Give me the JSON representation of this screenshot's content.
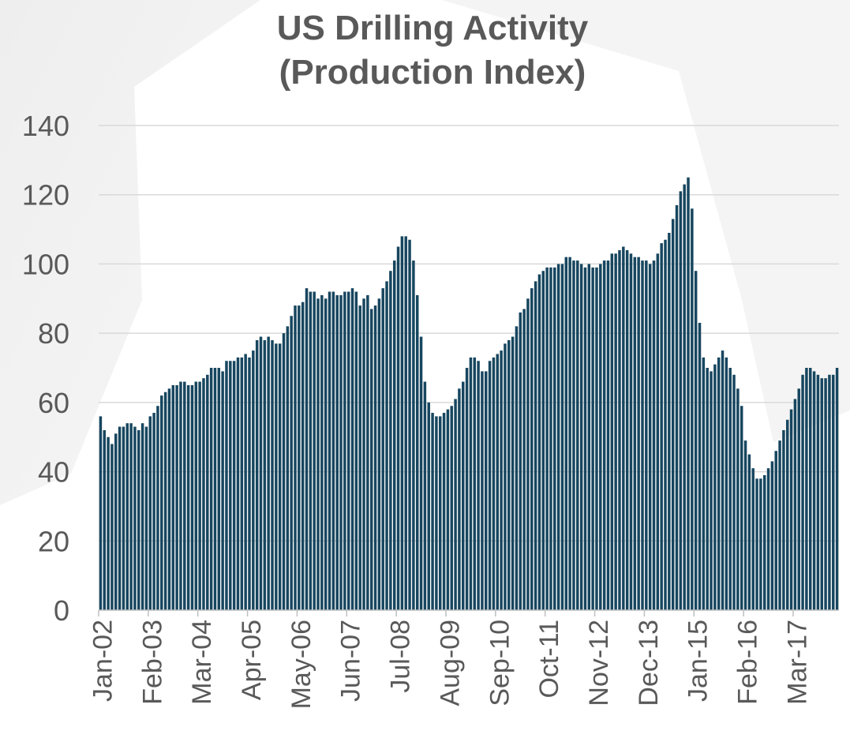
{
  "chart_data": {
    "type": "bar",
    "title": "US Drilling Activity",
    "subtitle": "(Production Index)",
    "categories": [
      "Jan-02",
      null,
      null,
      null,
      null,
      null,
      null,
      null,
      null,
      null,
      null,
      null,
      null,
      "Feb-03",
      null,
      null,
      null,
      null,
      null,
      null,
      null,
      null,
      null,
      null,
      null,
      null,
      "Mar-04",
      null,
      null,
      null,
      null,
      null,
      null,
      null,
      null,
      null,
      null,
      null,
      null,
      "Apr-05",
      null,
      null,
      null,
      null,
      null,
      null,
      null,
      null,
      null,
      null,
      null,
      null,
      "May-06",
      null,
      null,
      null,
      null,
      null,
      null,
      null,
      null,
      null,
      null,
      null,
      null,
      "Jun-07",
      null,
      null,
      null,
      null,
      null,
      null,
      null,
      null,
      null,
      null,
      null,
      null,
      "Jul-08",
      null,
      null,
      null,
      null,
      null,
      null,
      null,
      null,
      null,
      null,
      null,
      null,
      "Aug-09",
      null,
      null,
      null,
      null,
      null,
      null,
      null,
      null,
      null,
      null,
      null,
      null,
      "Sep-10",
      null,
      null,
      null,
      null,
      null,
      null,
      null,
      null,
      null,
      null,
      null,
      null,
      "Oct-11",
      null,
      null,
      null,
      null,
      null,
      null,
      null,
      null,
      null,
      null,
      null,
      null,
      "Nov-12",
      null,
      null,
      null,
      null,
      null,
      null,
      null,
      null,
      null,
      null,
      null,
      null,
      "Dec-13",
      null,
      null,
      null,
      null,
      null,
      null,
      null,
      null,
      null,
      null,
      null,
      null,
      "Jan-15",
      null,
      null,
      null,
      null,
      null,
      null,
      null,
      null,
      null,
      null,
      null,
      null,
      "Feb-16",
      null,
      null,
      null,
      null,
      null,
      null,
      null,
      null,
      null,
      null,
      null,
      null,
      "Mar-17",
      null,
      null,
      null,
      null,
      null,
      null,
      null,
      null,
      null,
      null,
      null
    ],
    "values": [
      56,
      52,
      50,
      48,
      51,
      53,
      53,
      54,
      54,
      53,
      52,
      54,
      53,
      56,
      57,
      59,
      62,
      63,
      64,
      65,
      65,
      66,
      66,
      65,
      65,
      66,
      66,
      67,
      68,
      70,
      70,
      70,
      69,
      72,
      72,
      72,
      73,
      73,
      74,
      73,
      75,
      78,
      79,
      78,
      79,
      78,
      77,
      77,
      80,
      82,
      85,
      88,
      88,
      89,
      93,
      92,
      92,
      90,
      91,
      90,
      92,
      92,
      91,
      91,
      92,
      92,
      93,
      92,
      88,
      90,
      91,
      87,
      88,
      90,
      93,
      95,
      98,
      101,
      105,
      108,
      108,
      107,
      101,
      91,
      79,
      66,
      60,
      57,
      56,
      56,
      57,
      58,
      59,
      61,
      64,
      66,
      70,
      73,
      73,
      72,
      69,
      69,
      72,
      73,
      74,
      75,
      77,
      78,
      79,
      82,
      86,
      87,
      90,
      93,
      95,
      97,
      98,
      99,
      99,
      99,
      100,
      100,
      102,
      102,
      101,
      101,
      100,
      99,
      100,
      99,
      99,
      100,
      101,
      101,
      103,
      103,
      104,
      105,
      104,
      103,
      102,
      102,
      101,
      101,
      100,
      101,
      103,
      106,
      107,
      109,
      113,
      117,
      121,
      123,
      125,
      116,
      98,
      83,
      73,
      70,
      69,
      71,
      73,
      75,
      73,
      70,
      68,
      64,
      59,
      49,
      45,
      41,
      38,
      38,
      39,
      41,
      43,
      46,
      49,
      52,
      55,
      58,
      61,
      64,
      68,
      70,
      70,
      69,
      68,
      67,
      67,
      68,
      68,
      70
    ],
    "color": "#17465f",
    "ylim": [
      0,
      140
    ],
    "yticks": [
      0,
      20,
      40,
      60,
      80,
      100,
      120,
      140
    ],
    "grid": true
  }
}
